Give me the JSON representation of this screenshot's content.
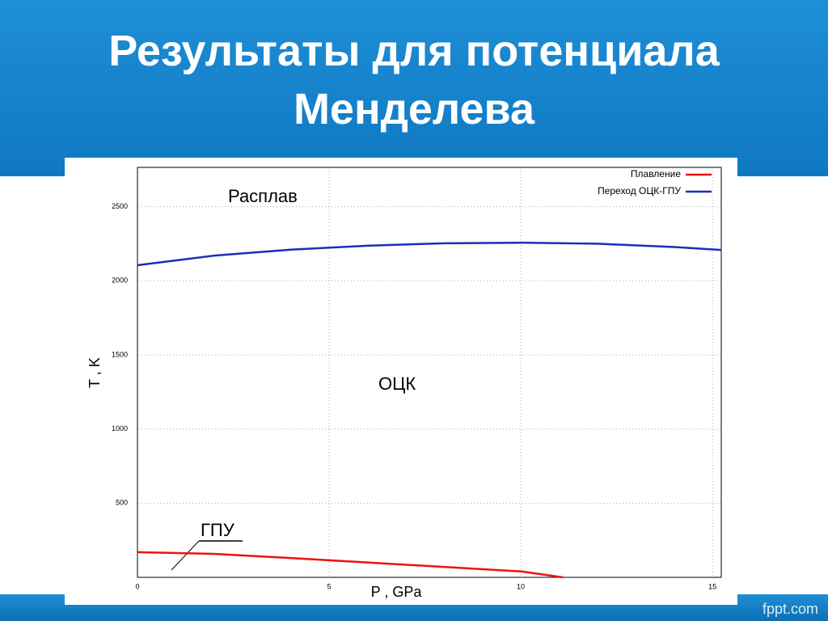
{
  "slide": {
    "title": [
      "Результаты для потенциала",
      "Менделева"
    ],
    "footer": "fppt.com"
  },
  "chart_data": {
    "type": "line",
    "xlabel": "P , GPa",
    "ylabel": "T , K",
    "annotations": [
      "Расплав",
      "ОЦК",
      "ГПУ"
    ],
    "series": [
      {
        "name": "Плавление",
        "color": "#ee1111",
        "x": [
          0,
          2,
          4,
          6,
          8,
          10,
          11.1
        ],
        "values": [
          170,
          158,
          130,
          100,
          70,
          40,
          0
        ]
      },
      {
        "name": "Переход ОЦК-ГПУ",
        "color": "#1a2fb8",
        "x": [
          0,
          2,
          4,
          6,
          8,
          10,
          12,
          14,
          15.23
        ],
        "values": [
          2105,
          2170,
          2210,
          2237,
          2253,
          2257,
          2250,
          2228,
          2208
        ]
      }
    ],
    "xlim": [
      0,
      15.23
    ],
    "ylim": [
      0,
      2765
    ],
    "xticks": [
      0,
      5,
      10,
      15
    ],
    "yticks": [
      500,
      1000,
      1500,
      2000,
      2500
    ],
    "grid": true,
    "legend": "top-right"
  }
}
